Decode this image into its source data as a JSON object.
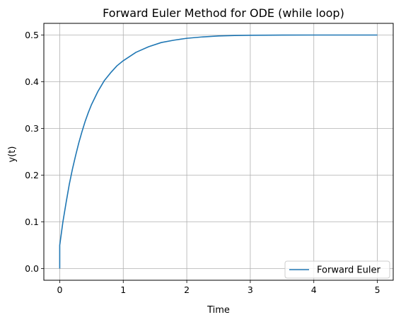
{
  "chart_data": {
    "type": "line",
    "title": "Forward Euler Method for ODE (while loop)",
    "xlabel": "Time",
    "ylabel": "y(t)",
    "xlim": [
      -0.25,
      5.25
    ],
    "ylim": [
      -0.025,
      0.525
    ],
    "xticks": [
      0,
      1,
      2,
      3,
      4,
      5
    ],
    "xtick_labels": [
      "0",
      "1",
      "2",
      "3",
      "4",
      "5"
    ],
    "yticks": [
      0.0,
      0.1,
      0.2,
      0.3,
      0.4,
      0.5
    ],
    "ytick_labels": [
      "0.0",
      "0.1",
      "0.2",
      "0.3",
      "0.4",
      "0.5"
    ],
    "grid": true,
    "legend_position": "lower-right",
    "colors": {
      "line": "#1f77b4",
      "grid": "#b0b0b0"
    },
    "series": [
      {
        "name": "Forward Euler",
        "x": [
          0,
          0,
          0.05,
          0.1,
          0.15,
          0.2,
          0.25,
          0.3,
          0.35,
          0.4,
          0.45,
          0.5,
          0.6,
          0.7,
          0.8,
          0.9,
          1.0,
          1.2,
          1.4,
          1.6,
          1.8,
          2.0,
          2.25,
          2.5,
          2.75,
          3.0,
          3.5,
          4.0,
          4.5,
          5.0
        ],
        "y": [
          0.0,
          0.05,
          0.1,
          0.141,
          0.18,
          0.213,
          0.242,
          0.269,
          0.293,
          0.315,
          0.334,
          0.351,
          0.379,
          0.402,
          0.419,
          0.434,
          0.445,
          0.463,
          0.475,
          0.484,
          0.489,
          0.493,
          0.496,
          0.498,
          0.499,
          0.4995,
          0.4999,
          0.5,
          0.5,
          0.5
        ]
      }
    ]
  }
}
